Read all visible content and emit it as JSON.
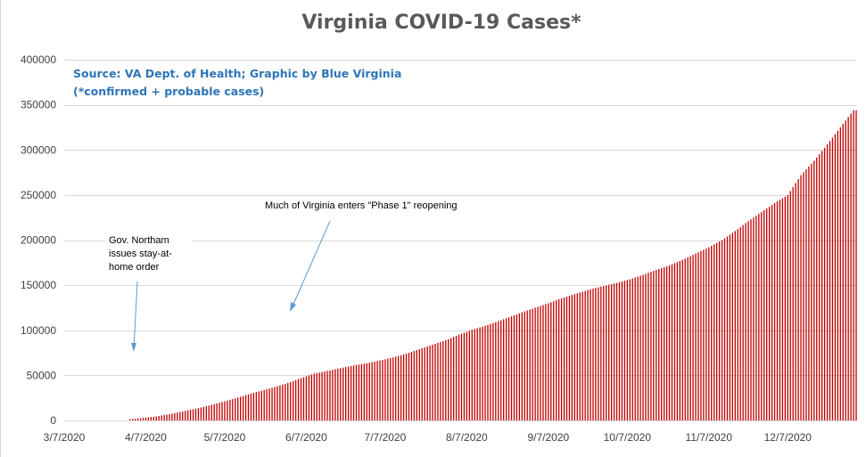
{
  "chart_data": {
    "type": "bar",
    "title": "Virginia COVID-19 Cases*",
    "source_lines": [
      "Source: VA Dept. of Health; Graphic by Blue Virginia",
      "(*confirmed + probable cases)"
    ],
    "ylim": [
      0,
      400000
    ],
    "y_ticks": [
      0,
      50000,
      100000,
      150000,
      200000,
      250000,
      300000,
      350000,
      400000
    ],
    "y_tick_labels": [
      "0",
      "50000",
      "100000",
      "150000",
      "200000",
      "250000",
      "300000",
      "350000",
      "400000"
    ],
    "x_tick_labels": [
      "3/7/2020",
      "4/7/2020",
      "5/7/2020",
      "6/7/2020",
      "7/7/2020",
      "8/7/2020",
      "9/7/2020",
      "10/7/2020",
      "11/7/2020",
      "12/7/2020"
    ],
    "x_tick_dates": [
      "2020-03-07",
      "2020-04-07",
      "2020-05-07",
      "2020-06-07",
      "2020-07-07",
      "2020-08-07",
      "2020-09-07",
      "2020-10-07",
      "2020-11-07",
      "2020-12-07"
    ],
    "x_range": [
      "2020-03-07",
      "2021-01-02"
    ],
    "bar_color": "#c00000",
    "grid": true,
    "legend": "none",
    "series": [
      {
        "x": [
          "2020-04-01",
          "2020-04-06",
          "2020-04-11",
          "2020-04-16",
          "2020-04-21",
          "2020-04-26",
          "2020-05-01",
          "2020-05-06",
          "2020-05-11",
          "2020-05-16",
          "2020-05-21",
          "2020-05-26",
          "2020-05-31",
          "2020-06-05",
          "2020-06-10",
          "2020-06-15",
          "2020-06-20",
          "2020-06-25",
          "2020-06-30",
          "2020-07-05",
          "2020-07-10",
          "2020-07-15",
          "2020-07-20",
          "2020-07-25",
          "2020-07-30",
          "2020-08-04",
          "2020-08-09",
          "2020-08-14",
          "2020-08-19",
          "2020-08-24",
          "2020-08-29",
          "2020-09-03",
          "2020-09-08",
          "2020-09-13",
          "2020-09-18",
          "2020-09-23",
          "2020-09-28",
          "2020-10-03",
          "2020-10-08",
          "2020-10-13",
          "2020-10-18",
          "2020-10-23",
          "2020-10-28",
          "2020-11-02",
          "2020-11-07",
          "2020-11-12",
          "2020-11-17",
          "2020-11-22",
          "2020-11-27",
          "2020-12-02",
          "2020-12-07",
          "2020-12-12",
          "2020-12-17",
          "2020-12-22",
          "2020-12-27",
          "2021-01-01"
        ],
        "values": [
          1500,
          2900,
          4500,
          7000,
          10000,
          13000,
          16500,
          20500,
          24500,
          29000,
          33000,
          37000,
          41500,
          47000,
          52000,
          55000,
          58000,
          61000,
          63500,
          66500,
          70000,
          74000,
          79000,
          84000,
          89000,
          95000,
          100500,
          105000,
          110000,
          115500,
          121000,
          126000,
          131000,
          136500,
          141000,
          145500,
          149000,
          152500,
          156500,
          161500,
          167000,
          172000,
          178000,
          185000,
          192000,
          200000,
          210000,
          221000,
          231000,
          241000,
          250000,
          272000,
          288000,
          306000,
          325000,
          344000
        ]
      }
    ],
    "annotations": [
      {
        "lines": [
          "Gov. Northam",
          "issues stay-at-",
          "home order"
        ],
        "points_to": "2020-03-30"
      },
      {
        "lines": [
          "Much of Virginia enters \"Phase 1\" reopening"
        ],
        "points_to": "2020-05-15"
      }
    ]
  }
}
